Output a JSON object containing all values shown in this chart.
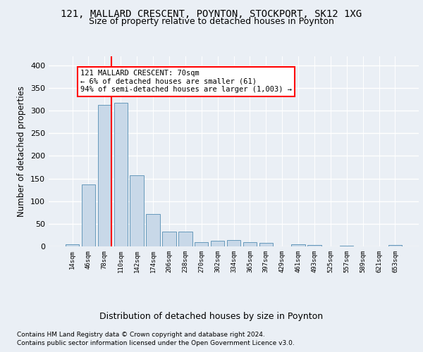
{
  "title1": "121, MALLARD CRESCENT, POYNTON, STOCKPORT, SK12 1XG",
  "title2": "Size of property relative to detached houses in Poynton",
  "xlabel": "Distribution of detached houses by size in Poynton",
  "ylabel": "Number of detached properties",
  "bar_labels": [
    "14sqm",
    "46sqm",
    "78sqm",
    "110sqm",
    "142sqm",
    "174sqm",
    "206sqm",
    "238sqm",
    "270sqm",
    "302sqm",
    "334sqm",
    "365sqm",
    "397sqm",
    "429sqm",
    "461sqm",
    "493sqm",
    "525sqm",
    "557sqm",
    "589sqm",
    "621sqm",
    "653sqm"
  ],
  "bar_values": [
    4,
    137,
    312,
    317,
    157,
    71,
    32,
    32,
    10,
    13,
    14,
    10,
    8,
    0,
    4,
    3,
    0,
    2,
    0,
    0,
    3
  ],
  "bar_color": "#c8d8e8",
  "bar_edgecolor": "#6699bb",
  "red_line_x": 2.42,
  "annotation_text": "121 MALLARD CRESCENT: 70sqm\n← 6% of detached houses are smaller (61)\n94% of semi-detached houses are larger (1,003) →",
  "annotation_box_color": "white",
  "annotation_box_edgecolor": "red",
  "ylim": [
    0,
    420
  ],
  "yticks": [
    0,
    50,
    100,
    150,
    200,
    250,
    300,
    350,
    400
  ],
  "footnote1": "Contains HM Land Registry data © Crown copyright and database right 2024.",
  "footnote2": "Contains public sector information licensed under the Open Government Licence v3.0.",
  "bg_color": "#eaeff5",
  "plot_bg_color": "#eaeff5",
  "grid_color": "white",
  "red_line_color": "red",
  "title1_fontsize": 10,
  "title2_fontsize": 9,
  "xlabel_fontsize": 9,
  "ylabel_fontsize": 8.5
}
